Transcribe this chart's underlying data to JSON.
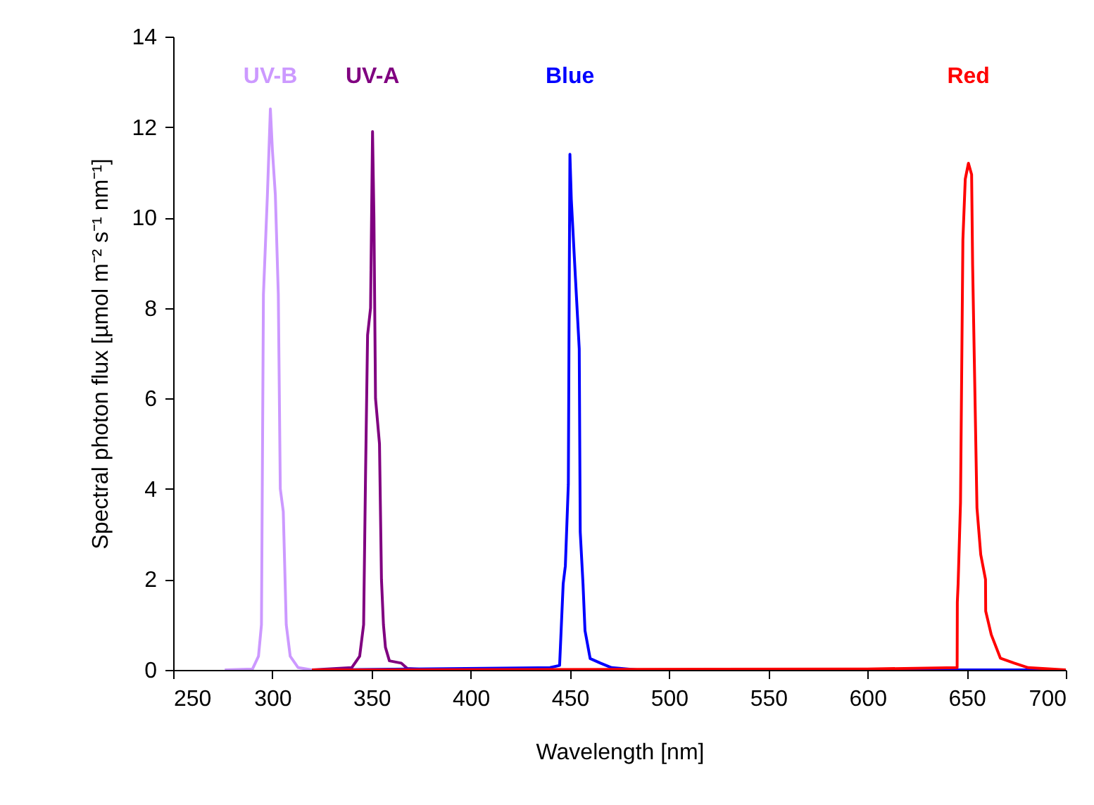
{
  "chart_data": {
    "type": "line",
    "xlabel": "Wavelength [nm]",
    "ylabel": "Spectral photon flux [µmol m⁻² s⁻¹ nm⁻¹]",
    "xlim": [
      250,
      700
    ],
    "xticks": [
      250,
      300,
      350,
      400,
      450,
      500,
      550,
      600,
      650,
      700
    ],
    "ylim": [
      0,
      14
    ],
    "yticks": [
      0,
      2,
      4,
      6,
      8,
      10,
      12,
      14
    ],
    "grid": false,
    "marker": "none",
    "line_style": "solid",
    "series": [
      {
        "name": "UV-B",
        "color": "#cc99ff",
        "x": [
          276,
          290,
          293,
          294.5,
          295.5,
          297.5,
          299,
          300,
          301.5,
          303,
          304,
          305.5,
          307,
          309,
          313,
          320,
          400,
          500,
          600,
          700
        ],
        "values": [
          0,
          0.02,
          0.3,
          1,
          8.3,
          10.5,
          12.4,
          11.5,
          10.5,
          8.3,
          4,
          3.5,
          1,
          0.3,
          0.05,
          0,
          0,
          0,
          0,
          0
        ]
      },
      {
        "name": "UV-A",
        "color": "#800080",
        "x": [
          320,
          340,
          344,
          346,
          347,
          348,
          349.5,
          350.5,
          351.2,
          352,
          354,
          355,
          356,
          357,
          359,
          365,
          368,
          380,
          500,
          600,
          700
        ],
        "values": [
          0,
          0.05,
          0.3,
          1,
          4.4,
          7.4,
          8,
          11.9,
          10,
          6,
          5,
          2,
          1,
          0.5,
          0.2,
          0.15,
          0.03,
          0,
          0,
          0,
          0
        ]
      },
      {
        "name": "Blue",
        "color": "#0000ff",
        "x": [
          330,
          440,
          444.8,
          446.6,
          447.7,
          449.2,
          449.7,
          450,
          450.7,
          452.8,
          454.7,
          455.2,
          456.6,
          457.6,
          460.2,
          465.4,
          471,
          484,
          600,
          700
        ],
        "values": [
          0,
          0.05,
          0.1,
          1.9,
          2.3,
          4.1,
          8.87,
          11.4,
          10.4,
          8.65,
          7.1,
          3.05,
          1.9,
          0.87,
          0.25,
          0.15,
          0.05,
          0,
          0,
          0
        ]
      },
      {
        "name": "Red",
        "color": "#ff0000",
        "x": [
          320,
          600,
          645.2,
          645.3,
          645.7,
          646.9,
          648.1,
          649.3,
          650.9,
          652.5,
          653,
          655.2,
          657.1,
          659.5,
          659.6,
          662.4,
          667,
          674,
          681,
          700
        ],
        "values": [
          0,
          0.02,
          0.05,
          1.5,
          1.9,
          3.7,
          9.5,
          10.85,
          11.2,
          10.95,
          8.97,
          3.58,
          2.55,
          2.0,
          1.3,
          0.78,
          0.26,
          0.15,
          0.05,
          0
        ]
      }
    ]
  }
}
